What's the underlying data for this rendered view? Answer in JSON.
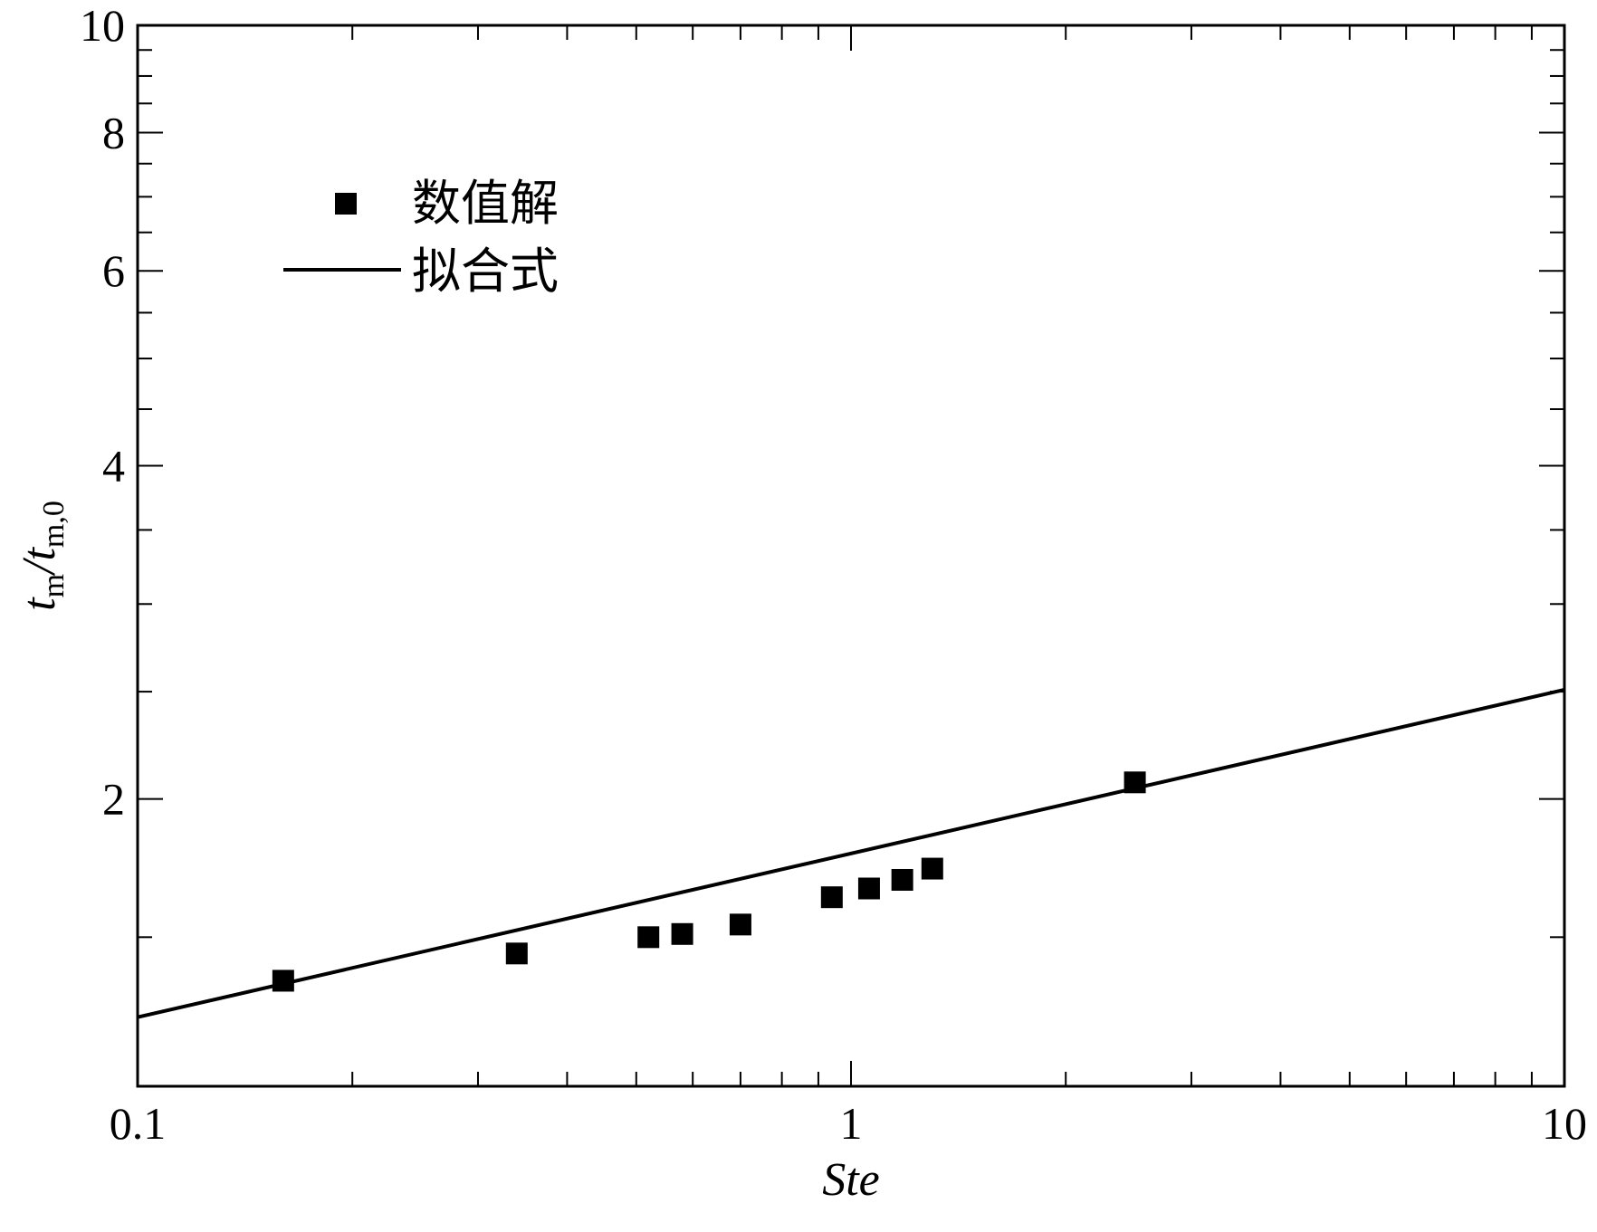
{
  "chart_data": {
    "type": "scatter",
    "x_scale": "log",
    "y_scale": "log",
    "xlim": [
      0.1,
      10
    ],
    "ylim": [
      1.1,
      10
    ],
    "xlabel": "Ste",
    "ylabel": {
      "main": "t",
      "sub": "m",
      "sep": "/",
      "main2": "t",
      "sub2": "m,0"
    },
    "x_ticks": [
      "0.1",
      "1",
      "10"
    ],
    "y_ticks": [
      "2",
      "4",
      "6",
      "8",
      "10"
    ],
    "grid": false,
    "legend_position": "top-left",
    "series": [
      {
        "name": "数值解",
        "kind": "scatter",
        "marker": "square",
        "color": "#000000",
        "x": [
          0.16,
          0.34,
          0.52,
          0.58,
          0.7,
          0.94,
          1.06,
          1.18,
          1.3,
          2.5
        ],
        "y": [
          1.37,
          1.45,
          1.5,
          1.51,
          1.54,
          1.63,
          1.66,
          1.69,
          1.73,
          2.07
        ]
      },
      {
        "name": "拟合式",
        "kind": "line",
        "color": "#000000",
        "x": [
          0.1,
          10
        ],
        "y": [
          1.27,
          2.51
        ]
      }
    ]
  }
}
